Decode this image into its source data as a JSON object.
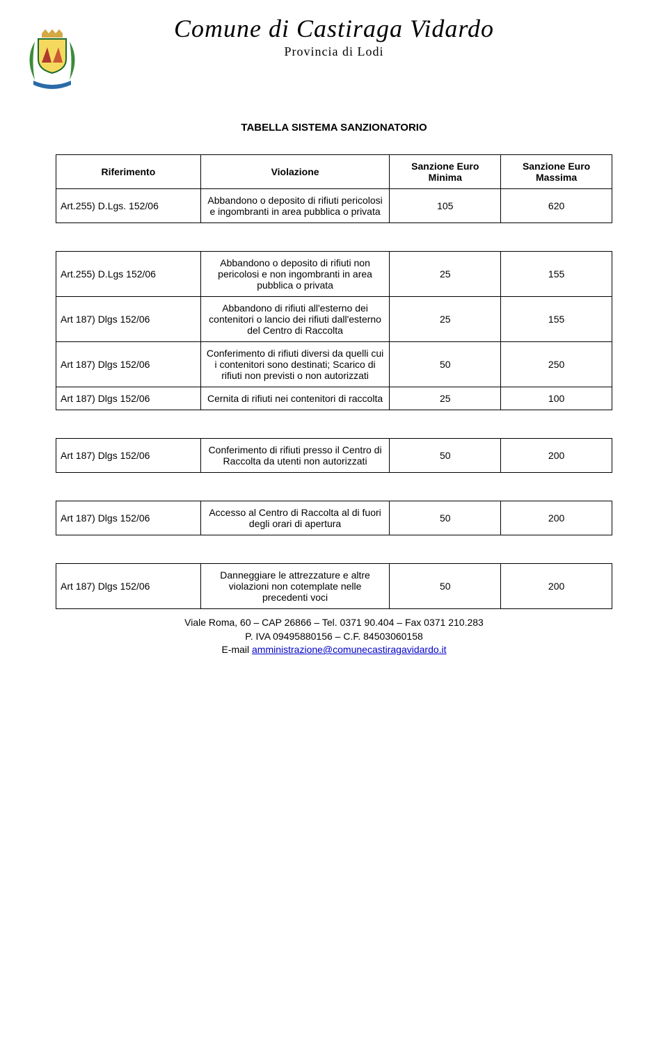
{
  "header": {
    "title": "Comune di Castiraga Vidardo",
    "subtitle": "Provincia di Lodi"
  },
  "section_title": "TABELLA SISTEMA SANZIONATORIO",
  "columns": {
    "ref": "Riferimento",
    "vio": "Violazione",
    "min": "Sanzione Euro Minima",
    "max": "Sanzione Euro Massima"
  },
  "tables": [
    {
      "show_header": true,
      "rows": [
        {
          "ref": "Art.255) D.Lgs. 152/06",
          "vio": "Abbandono o deposito di rifiuti pericolosi e ingombranti in area pubblica o privata",
          "min": "105",
          "max": "620"
        }
      ]
    },
    {
      "show_header": false,
      "rows": [
        {
          "ref": "Art.255) D.Lgs 152/06",
          "vio": "Abbandono o deposito di rifiuti non pericolosi e non ingombranti in area pubblica o privata",
          "min": "25",
          "max": "155"
        },
        {
          "ref": "Art 187) Dlgs 152/06",
          "vio": "Abbandono di rifiuti all'esterno dei contenitori o lancio dei rifiuti dall'esterno del Centro di Raccolta",
          "min": "25",
          "max": "155"
        },
        {
          "ref": "Art 187) Dlgs 152/06",
          "vio": "Conferimento di rifiuti diversi da quelli cui i contenitori sono destinati; Scarico di rifiuti non previsti o non autorizzati",
          "min": "50",
          "max": "250"
        },
        {
          "ref": "Art 187) Dlgs 152/06",
          "vio": "Cernita di rifiuti nei contenitori di raccolta",
          "min": "25",
          "max": "100"
        }
      ]
    },
    {
      "show_header": false,
      "rows": [
        {
          "ref": "Art 187) Dlgs 152/06",
          "vio": "Conferimento di rifiuti presso il Centro di Raccolta da utenti non autorizzati",
          "min": "50",
          "max": "200"
        }
      ]
    },
    {
      "show_header": false,
      "rows": [
        {
          "ref": "Art 187) Dlgs 152/06",
          "vio": "Accesso al Centro di Raccolta al di fuori degli orari di apertura",
          "min": "50",
          "max": "200"
        }
      ]
    },
    {
      "show_header": false,
      "rows": [
        {
          "ref": "Art 187) Dlgs 152/06",
          "vio": "Danneggiare le attrezzature e altre violazioni non cotemplate nelle precedenti voci",
          "min": "50",
          "max": "200"
        }
      ]
    }
  ],
  "footer": {
    "line1": "Viale Roma, 60 – CAP 26866 – Tel. 0371 90.404 – Fax 0371 210.283",
    "line2": "P. IVA 09495880156 – C.F. 84503060158",
    "line3_prefix": "E-mail ",
    "email": "amministrazione@comunecastiragavidardo.it"
  },
  "crest_colors": {
    "crown": "#d4a843",
    "shield_bg": "#f5d95e",
    "shield_border": "#1a6b2a",
    "tent_left": "#b0392e",
    "tent_right": "#c95a33",
    "laurel_left": "#3a8a3a",
    "laurel_right": "#3a8a3a",
    "ribbon": "#2a6aa8"
  }
}
